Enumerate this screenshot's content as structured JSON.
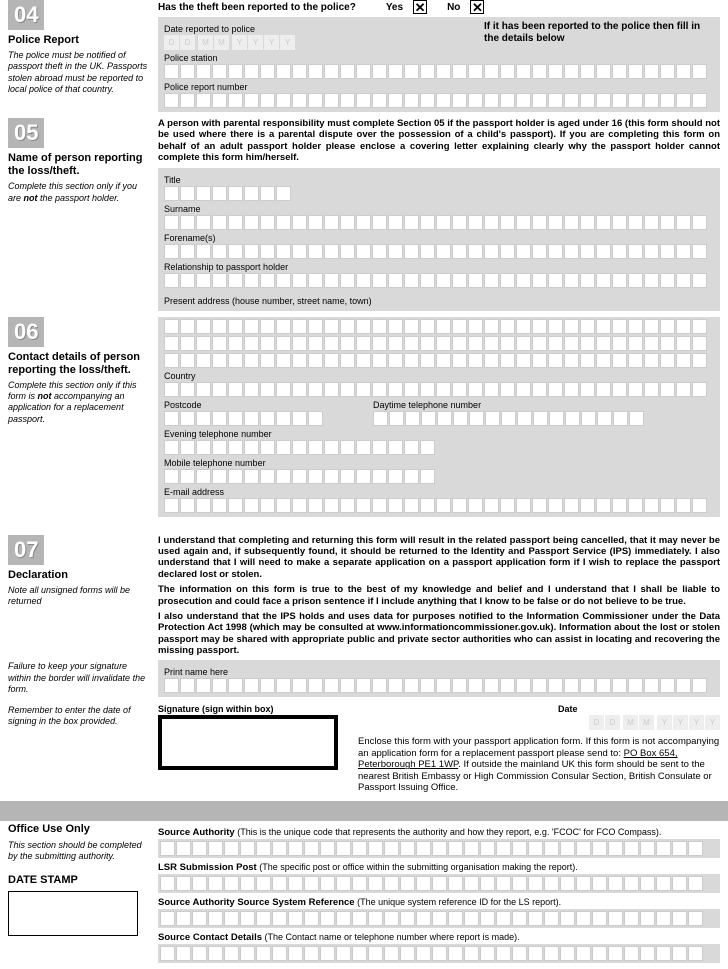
{
  "s04": {
    "num": "04",
    "title": "Police Report",
    "note": "The police must be notified of passport theft in the UK. Passports stolen abroad must be reported to local police of that country.",
    "question": "Has the theft been reported to the police?",
    "yes": "Yes",
    "no": "No",
    "date_label": "Date reported to police",
    "date_ph": [
      "D",
      "D",
      "M",
      "M",
      "Y",
      "Y",
      "Y",
      "Y"
    ],
    "note_right": "If it has been reported to the police then fill in the details below",
    "police_station": "Police station",
    "report_no": "Police report number"
  },
  "s05": {
    "num": "05",
    "title": "Name of person reporting the loss/theft.",
    "note1": "Complete this section only if you are ",
    "note_bold": "not",
    "note2": " the passport holder.",
    "intro": "A person with parental responsibility must complete Section 05 if the passport holder is aged under 16 (this form should not be used where there is a parental dispute over the possession of a child's passport). If you are completing this form on behalf of an adult passport holder please enclose a covering letter explaining clearly why the passport holder cannot complete this form him/herself.",
    "title_f": "Title",
    "surname": "Surname",
    "forenames": "Forename(s)",
    "rel": "Relationship to passport holder",
    "addr": "Present address (house number, street name, town)"
  },
  "s06": {
    "num": "06",
    "title": "Contact details of person reporting the loss/theft.",
    "note1": "Complete this section only if this form is ",
    "note_bold": "not",
    "note2": " accompanying an application for a replacement passport.",
    "country": "Country",
    "postcode": "Postcode",
    "daytime": "Daytime telephone number",
    "evening": "Evening telephone number",
    "mobile": "Mobile telephone number",
    "email": "E-mail address"
  },
  "s07": {
    "num": "07",
    "title": "Declaration",
    "note1": "Note all unsigned forms will be returned",
    "note2": "Failure to keep your signature within the border will invalidate the form.",
    "note3": "Remember to enter the date of signing in the box provided.",
    "p1": "I understand that completing and returning this form will result in the related passport being cancelled, that it may never be used again and, if subsequently found, it should be returned to the Identity and Passport Service (IPS) immediately. I also understand that I will need to make a separate application on a passport application form if I wish to replace the passport declared lost or stolen.",
    "p2": "The information on this form is true to the best of my knowledge and belief and I understand that I shall be liable to prosecution and could face a prison sentence if I include anything that I know to be false or do not believe to be true.",
    "p3": "I also understand that the IPS holds and uses data for purposes notified to the Information Commissioner under the Data Protection Act 1998 (which may be consulted at www.informationcommissioner.gov.uk). Information about the lost or stolen passport may be shared with appropriate public and private sector authorities who can assist in locating and recovering the missing passport.",
    "print_name": "Print name here",
    "sig": "Signature (sign within box)",
    "date": "Date",
    "date_ph": [
      "D",
      "D",
      "M",
      "M",
      "Y",
      "Y",
      "Y",
      "Y"
    ],
    "enclose": "Enclose this form with your passport application form. If this form is not accompanying an application form for a  replacement passport please send to: ",
    "address": "PO Box 654, Peterborough PE1 1WP",
    "enclose2": ". If outside the mainland UK this form should be sent to the nearest British Embassy or High Commission Consular Section, British Consulate or Passport Issuing Office."
  },
  "office": {
    "title": "Office Use Only",
    "note": "This section should be completed by the submitting authority.",
    "date_stamp": "DATE STAMP",
    "f1": "Source Authority",
    "f1d": " (This is the unique code that represents the authority and how they report, e.g. 'FCOC' for FCO Compass).",
    "f2": "LSR Submission Post",
    "f2d": " (The specific post or office within the submitting organisation making the report).",
    "f3": "Source Authority Source System Reference",
    "f3d": " (The unique system reference ID for the LS report).",
    "f4": "Source Contact Details",
    "f4d": " (The Contact name or telephone number where report is made)."
  },
  "layout": {
    "long_cells": 34,
    "short_cells": 8,
    "mid_cells": 17,
    "postcode_cells": 10,
    "colors": {
      "gray_block": "#d9d9d9",
      "badge": "#b5b5b5",
      "cell_border": "#ccc"
    }
  }
}
